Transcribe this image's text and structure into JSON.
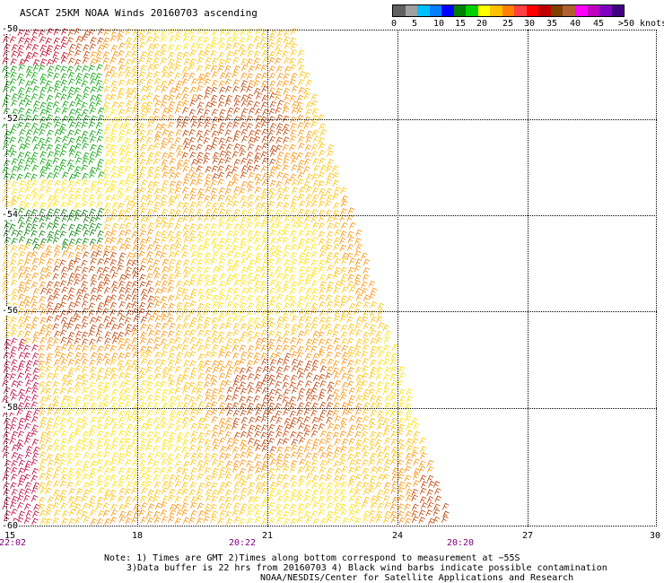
{
  "title": "ASCAT 25KM NOAA Winds 20160703 ascending",
  "colorbar": {
    "colors": [
      "#606060",
      "#a0a0a0",
      "#00c0ff",
      "#0080ff",
      "#0000ff",
      "#008000",
      "#00d000",
      "#ffff00",
      "#ffc000",
      "#ff8000",
      "#ff4040",
      "#ff0000",
      "#c00000",
      "#804000",
      "#b06030",
      "#ff00ff",
      "#c000c0",
      "#8000c0",
      "#400080"
    ],
    "labels": [
      "0",
      "5",
      "10",
      "15",
      "20",
      "25",
      "30",
      "35",
      "40",
      "45",
      ">50 knots"
    ]
  },
  "lat_labels": [
    "-50",
    "-52",
    "-54",
    "-56",
    "-58",
    "-60"
  ],
  "lon_labels": [
    "15",
    "18",
    "21",
    "24",
    "27",
    "30"
  ],
  "time_labels": [
    "22:02",
    "20:22",
    "20:20"
  ],
  "note": {
    "line1": "Note: 1) Times are GMT 2)Times along bottom correspond to measurement at −55S",
    "line2": "3)Data buffer is 22 hrs from 20160703 4) Black wind barbs indicate possible contamination",
    "line3": "NOAA/NESDIS/Center for Satellite Applications and Research"
  }
}
